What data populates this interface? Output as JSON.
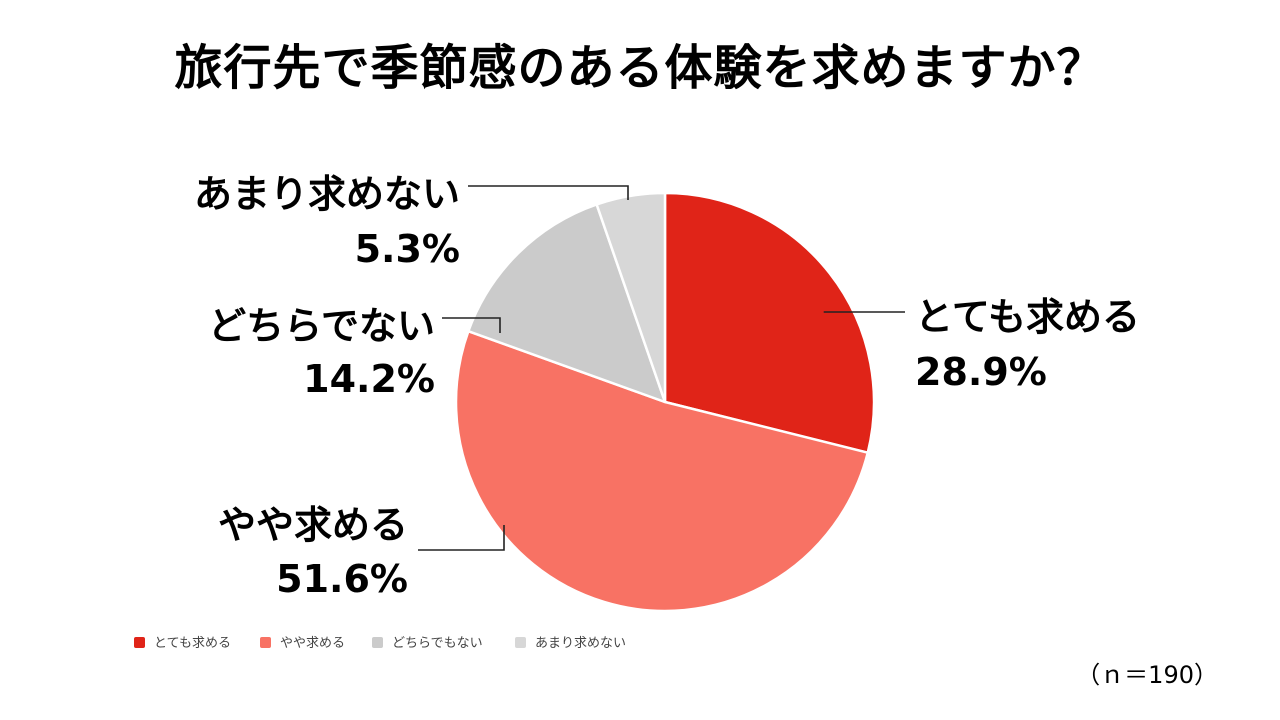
{
  "title": "旅行先で季節感のある体験を求めますか？",
  "note": "（ｎ＝190）",
  "chart_data": {
    "type": "pie",
    "title": "旅行先で季節感のある体験を求めますか？",
    "categories": [
      "とても求める",
      "やや求める",
      "どちらでもない",
      "あまり求めない"
    ],
    "values": [
      28.9,
      51.6,
      14.2,
      5.3
    ],
    "colors": [
      "#e02418",
      "#f87264",
      "#cbcbcb",
      "#d7d7d7"
    ],
    "slice_labels": [
      {
        "category": "とても求める",
        "name": "とても求める",
        "value": "28.9%"
      },
      {
        "category": "やや求める",
        "name": "やや求める",
        "value": "51.6%"
      },
      {
        "category": "どちらでもない",
        "name": "どちらでない",
        "value": "14.2%"
      },
      {
        "category": "あまり求めない",
        "name": "あまり求めない",
        "value": "5.3%"
      }
    ],
    "legend": {
      "position": "bottom-left",
      "items": [
        "とても求める",
        "やや求める",
        "どちらでもない",
        "あまり求めない"
      ]
    },
    "n": 190
  }
}
